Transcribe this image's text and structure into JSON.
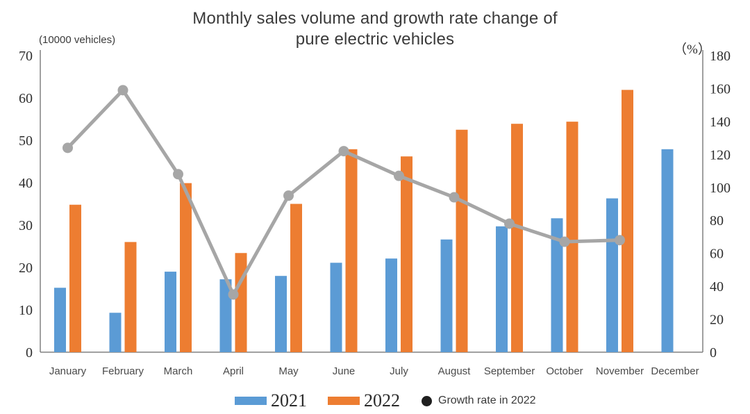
{
  "chart_data": {
    "type": "combo",
    "title_lines": [
      "Monthly sales volume and growth rate change of",
      "pure electric vehicles"
    ],
    "categories": [
      "January",
      "February",
      "March",
      "April",
      "May",
      "June",
      "July",
      "August",
      "September",
      "October",
      "November",
      "December"
    ],
    "left_axis": {
      "unit_label": "(10000 vehicles)",
      "min": 0,
      "max": 70,
      "ticks": [
        0,
        10,
        20,
        30,
        40,
        50,
        60,
        70
      ]
    },
    "right_axis": {
      "unit_label": "（%）",
      "min": 0,
      "max": 180,
      "ticks": [
        0,
        20,
        40,
        60,
        80,
        100,
        120,
        140,
        160,
        180
      ]
    },
    "series": [
      {
        "name": "2021",
        "type": "bar",
        "axis": "left",
        "color": "#5B9BD5",
        "values": [
          15.2,
          9.3,
          19.0,
          17.2,
          18.0,
          21.1,
          22.1,
          26.6,
          29.7,
          31.6,
          36.3,
          47.9
        ]
      },
      {
        "name": "2022",
        "type": "bar",
        "axis": "left",
        "color": "#ED7D31",
        "values": [
          34.8,
          26.0,
          39.9,
          23.4,
          35.0,
          47.9,
          46.2,
          52.5,
          53.9,
          54.4,
          61.9,
          null
        ]
      },
      {
        "name": "Growth rate in 2022",
        "type": "line",
        "axis": "right",
        "color": "#A6A6A6",
        "values": [
          124,
          159,
          108,
          35,
          95,
          122,
          107,
          94,
          78,
          67,
          68,
          null
        ]
      }
    ],
    "grid": false,
    "legend_position": "bottom"
  },
  "legend": {
    "items": [
      {
        "label": "2021",
        "swatch": "bar",
        "color": "#5B9BD5"
      },
      {
        "label": "2022",
        "swatch": "bar",
        "color": "#ED7D31"
      },
      {
        "label": "Growth rate in 2022",
        "swatch": "dot",
        "color": "#1f1f1f"
      }
    ]
  },
  "colors": {
    "axis_line": "#808080",
    "line_series": "#A6A6A6",
    "text": "#3a3a3a"
  }
}
